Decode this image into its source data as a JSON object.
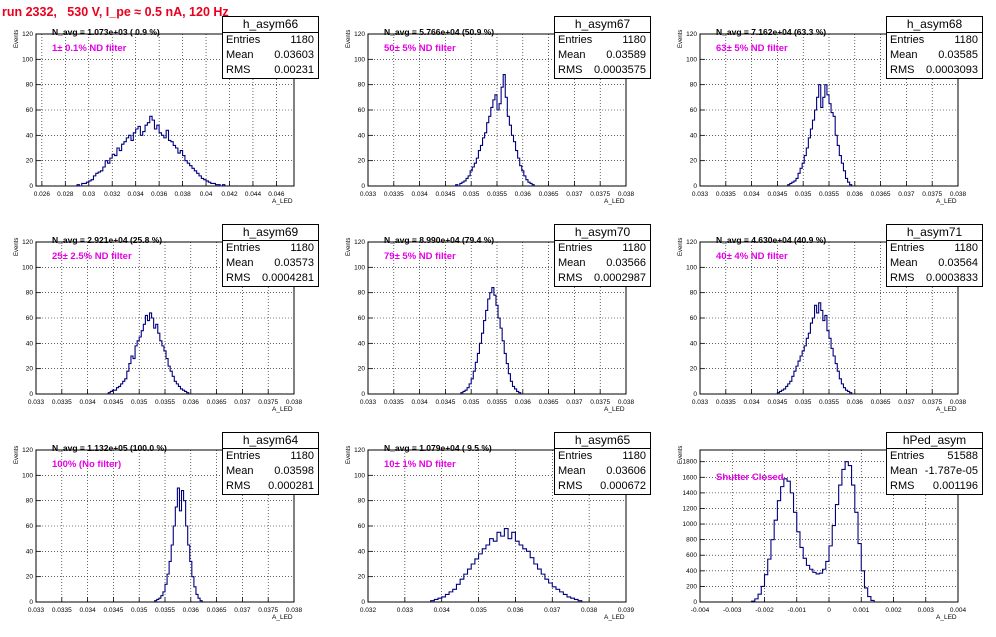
{
  "title": "run 2332,   530 V, I_pe ≈ 0.5 nA, 120 Hz",
  "chart_data": [
    {
      "type": "bar",
      "name": "h_asym66",
      "navg": "N_avg = 1.073e+03 ( 0.9 %)",
      "filter": "1± 0.1% ND filter",
      "stats": {
        "Entries": "1180",
        "Mean": "0.03603",
        "RMS": "0.00231"
      },
      "xlabel": "A_LED",
      "ylabel": "Events",
      "xlim": [
        0.0255,
        0.0475
      ],
      "ylim": [
        0,
        120
      ],
      "xticks": [
        "0.026",
        "0.028",
        "0.03",
        "0.032",
        "0.034",
        "0.036",
        "0.038",
        "0.04",
        "0.042",
        "0.044",
        "0.046"
      ],
      "yticks": [
        "0",
        "20",
        "40",
        "60",
        "80",
        "100",
        "120"
      ],
      "bins_from": 0.029,
      "bin_width": 0.0002,
      "values": [
        1,
        0,
        2,
        2,
        3,
        4,
        5,
        8,
        10,
        11,
        12,
        15,
        20,
        18,
        22,
        25,
        24,
        30,
        28,
        33,
        35,
        38,
        40,
        36,
        42,
        45,
        47,
        40,
        43,
        48,
        50,
        55,
        52,
        45,
        48,
        42,
        40,
        38,
        44,
        36,
        35,
        32,
        30,
        26,
        28,
        24,
        20,
        18,
        16,
        14,
        12,
        10,
        8,
        6,
        5,
        4,
        3,
        2,
        2,
        1,
        1,
        0,
        1
      ]
    },
    {
      "type": "bar",
      "name": "h_asym67",
      "navg": "N_avg = 5.766e+04 (50.9 %)",
      "filter": "50± 5% ND filter",
      "stats": {
        "Entries": "1180",
        "Mean": "0.03589",
        "RMS": "0.0003575"
      },
      "xlabel": "A_LED",
      "ylabel": "Events",
      "xlim": [
        0.033,
        0.038
      ],
      "ylim": [
        0,
        120
      ],
      "xticks": [
        "0.033",
        "0.0335",
        "0.034",
        "0.0345",
        "0.035",
        "0.0355",
        "0.036",
        "0.0365",
        "0.037",
        "0.0375",
        "0.038"
      ],
      "yticks": [
        "0",
        "20",
        "40",
        "60",
        "80",
        "100",
        "120"
      ],
      "bins_from": 0.0347,
      "bin_width": 4e-05,
      "values": [
        1,
        0,
        2,
        3,
        4,
        6,
        8,
        12,
        15,
        18,
        22,
        28,
        32,
        38,
        42,
        50,
        55,
        62,
        68,
        72,
        60,
        65,
        78,
        88,
        70,
        55,
        48,
        40,
        35,
        28,
        22,
        16,
        12,
        8,
        5,
        3,
        2,
        1
      ]
    },
    {
      "type": "bar",
      "name": "h_asym68",
      "navg": "N_avg = 7.162e+04 (63.3 %)",
      "filter": "63± 5% ND filter",
      "stats": {
        "Entries": "1180",
        "Mean": "0.03585",
        "RMS": "0.0003093"
      },
      "xlabel": "A_LED",
      "ylabel": "Events",
      "xlim": [
        0.033,
        0.038
      ],
      "ylim": [
        0,
        120
      ],
      "xticks": [
        "0.033",
        "0.0335",
        "0.034",
        "0.0345",
        "0.035",
        "0.0355",
        "0.036",
        "0.0365",
        "0.037",
        "0.0375",
        "0.038"
      ],
      "yticks": [
        "0",
        "20",
        "40",
        "60",
        "80",
        "100",
        "120"
      ],
      "bins_from": 0.0347,
      "bin_width": 4e-05,
      "values": [
        1,
        2,
        3,
        4,
        6,
        10,
        14,
        18,
        24,
        30,
        38,
        45,
        52,
        60,
        70,
        80,
        62,
        70,
        80,
        72,
        65,
        58,
        55,
        40,
        32,
        24,
        18,
        12,
        6,
        3,
        1
      ]
    },
    {
      "type": "bar",
      "name": "h_asym69",
      "navg": "N_avg = 2.921e+04 (25.8 %)",
      "filter": "25± 2.5% ND filter",
      "stats": {
        "Entries": "1180",
        "Mean": "0.03573",
        "RMS": "0.0004281"
      },
      "xlabel": "A_LED",
      "ylabel": "Events",
      "xlim": [
        0.033,
        0.038
      ],
      "ylim": [
        0,
        120
      ],
      "xticks": [
        "0.033",
        "0.0335",
        "0.034",
        "0.0345",
        "0.035",
        "0.0355",
        "0.036",
        "0.0365",
        "0.037",
        "0.0375",
        "0.038"
      ],
      "yticks": [
        "0",
        "20",
        "40",
        "60",
        "80",
        "100",
        "120"
      ],
      "bins_from": 0.0344,
      "bin_width": 4e-05,
      "values": [
        1,
        2,
        3,
        3,
        5,
        6,
        8,
        10,
        12,
        18,
        24,
        30,
        28,
        38,
        42,
        45,
        50,
        55,
        62,
        58,
        64,
        60,
        52,
        55,
        48,
        42,
        38,
        34,
        28,
        22,
        18,
        14,
        10,
        8,
        6,
        4,
        3,
        2,
        1
      ]
    },
    {
      "type": "bar",
      "name": "h_asym70",
      "navg": "N_avg = 8.990e+04 (79.4 %)",
      "filter": "79± 5% ND filter",
      "stats": {
        "Entries": "1180",
        "Mean": "0.03566",
        "RMS": "0.0002987"
      },
      "xlabel": "A_LED",
      "ylabel": "Events",
      "xlim": [
        0.033,
        0.038
      ],
      "ylim": [
        0,
        120
      ],
      "xticks": [
        "0.033",
        "0.0335",
        "0.034",
        "0.0345",
        "0.035",
        "0.0355",
        "0.036",
        "0.0365",
        "0.037",
        "0.0375",
        "0.038"
      ],
      "yticks": [
        "0",
        "20",
        "40",
        "60",
        "80",
        "100",
        "120"
      ],
      "bins_from": 0.0348,
      "bin_width": 4e-05,
      "values": [
        1,
        2,
        3,
        5,
        8,
        12,
        18,
        25,
        32,
        40,
        48,
        58,
        66,
        75,
        80,
        84,
        78,
        70,
        60,
        52,
        42,
        32,
        24,
        16,
        10,
        6,
        4,
        2,
        1
      ]
    },
    {
      "type": "bar",
      "name": "h_asym71",
      "navg": "N_avg = 4.630e+04 (40.9 %)",
      "filter": "40± 4% ND filter",
      "stats": {
        "Entries": "1180",
        "Mean": "0.03564",
        "RMS": "0.0003833"
      },
      "xlabel": "A_LED",
      "ylabel": "Events",
      "xlim": [
        0.033,
        0.038
      ],
      "ylim": [
        0,
        120
      ],
      "xticks": [
        "0.033",
        "0.0335",
        "0.034",
        "0.0345",
        "0.035",
        "0.0355",
        "0.036",
        "0.0365",
        "0.037",
        "0.0375",
        "0.038"
      ],
      "yticks": [
        "0",
        "20",
        "40",
        "60",
        "80",
        "100",
        "120"
      ],
      "bins_from": 0.0345,
      "bin_width": 4e-05,
      "values": [
        1,
        2,
        3,
        4,
        6,
        8,
        10,
        14,
        18,
        22,
        26,
        30,
        34,
        38,
        44,
        48,
        56,
        60,
        70,
        64,
        72,
        66,
        58,
        62,
        50,
        44,
        36,
        30,
        24,
        18,
        12,
        8,
        5,
        3,
        2,
        1
      ]
    },
    {
      "type": "bar",
      "name": "h_asym64",
      "navg": "N_avg = 1.132e+05 (100.0 %)",
      "filter": "100% (No filter)",
      "stats": {
        "Entries": "1180",
        "Mean": "0.03598",
        "RMS": "0.000281"
      },
      "xlabel": "A_LED",
      "ylabel": "Events",
      "xlim": [
        0.033,
        0.038
      ],
      "ylim": [
        0,
        120
      ],
      "xticks": [
        "0.033",
        "0.0335",
        "0.034",
        "0.0345",
        "0.035",
        "0.0355",
        "0.036",
        "0.0365",
        "0.037",
        "0.0375",
        "0.038"
      ],
      "yticks": [
        "0",
        "20",
        "40",
        "60",
        "80",
        "100",
        "120"
      ],
      "bins_from": 0.0353,
      "bin_width": 4e-05,
      "values": [
        1,
        2,
        3,
        5,
        8,
        14,
        22,
        32,
        45,
        60,
        75,
        90,
        72,
        88,
        80,
        60,
        45,
        32,
        20,
        12,
        6,
        3,
        1
      ]
    },
    {
      "type": "bar",
      "name": "h_asym65",
      "navg": "N_avg = 1.079e+04 ( 9.5 %)",
      "filter": "10± 1% ND filter",
      "stats": {
        "Entries": "1180",
        "Mean": "0.03606",
        "RMS": "0.000672"
      },
      "xlabel": "A_LED",
      "ylabel": "Events",
      "xlim": [
        0.032,
        0.039
      ],
      "ylim": [
        0,
        120
      ],
      "xticks": [
        "0.032",
        "0.033",
        "0.034",
        "0.035",
        "0.036",
        "0.037",
        "0.038",
        "0.039"
      ],
      "yticks": [
        "0",
        "20",
        "40",
        "60",
        "80",
        "100",
        "120"
      ],
      "bins_from": 0.0337,
      "bin_width": 0.0001,
      "values": [
        1,
        2,
        3,
        4,
        6,
        8,
        10,
        14,
        18,
        22,
        26,
        30,
        34,
        38,
        42,
        45,
        50,
        48,
        55,
        52,
        58,
        50,
        55,
        48,
        45,
        42,
        40,
        35,
        30,
        26,
        22,
        18,
        15,
        12,
        10,
        8,
        6,
        4,
        3,
        2,
        1
      ]
    },
    {
      "type": "bar",
      "name": "hPed_asym",
      "navg": "",
      "filter": "Shutter Closed",
      "stats": {
        "Entries": "51588",
        "Mean": "-1.787e-05",
        "RMS": "0.001196"
      },
      "xlabel": "A_LED",
      "ylabel": "Events",
      "xlim": [
        -0.004,
        0.004
      ],
      "ylim": [
        0,
        1950
      ],
      "xticks": [
        "-0.004",
        "-0.003",
        "-0.002",
        "-0.001",
        "0",
        "0.001",
        "0.002",
        "0.003",
        "0.004"
      ],
      "yticks": [
        "0",
        "200",
        "400",
        "600",
        "800",
        "1000",
        "1200",
        "1400",
        "1600",
        "1800"
      ],
      "bins_from": -0.0024,
      "bin_width": 0.0001,
      "values": [
        10,
        40,
        100,
        200,
        350,
        550,
        800,
        1050,
        1300,
        1480,
        1580,
        1550,
        1400,
        1150,
        900,
        700,
        560,
        470,
        420,
        380,
        360,
        370,
        420,
        520,
        720,
        980,
        1250,
        1500,
        1700,
        1800,
        1750,
        1500,
        1150,
        750,
        400,
        180,
        70,
        20
      ]
    }
  ]
}
